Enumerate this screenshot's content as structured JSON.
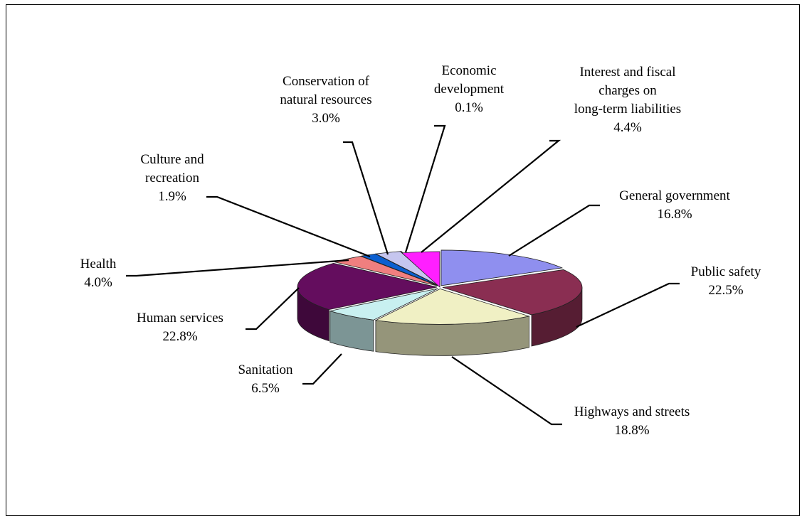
{
  "chart_data": {
    "type": "pie",
    "subtype": "3d-exploded",
    "title": "",
    "unit": "%",
    "slices": [
      {
        "label": "General government",
        "lines": [
          "General government"
        ],
        "value": 16.8,
        "value_label": "16.8%",
        "color": "#8f8fef"
      },
      {
        "label": "Public safety",
        "lines": [
          "Public safety"
        ],
        "value": 22.5,
        "value_label": "22.5%",
        "color": "#8a2e52"
      },
      {
        "label": "Highways and streets",
        "lines": [
          "Highways and streets"
        ],
        "value": 18.8,
        "value_label": "18.8%",
        "color": "#f0f0c4"
      },
      {
        "label": "Sanitation",
        "lines": [
          "Sanitation"
        ],
        "value": 6.5,
        "value_label": "6.5%",
        "color": "#c8f0f0"
      },
      {
        "label": "Human services",
        "lines": [
          "Human services"
        ],
        "value": 22.8,
        "value_label": "22.8%",
        "color": "#640d5e"
      },
      {
        "label": "Health",
        "lines": [
          "Health"
        ],
        "value": 4.0,
        "value_label": "4.0%",
        "color": "#f07f7f"
      },
      {
        "label": "Culture and recreation",
        "lines": [
          "Culture and",
          "recreation"
        ],
        "value": 1.9,
        "value_label": "1.9%",
        "color": "#0b5fd0"
      },
      {
        "label": "Conservation of natural resources",
        "lines": [
          "Conservation of",
          "natural resources"
        ],
        "value": 3.0,
        "value_label": "3.0%",
        "color": "#c6c6ef"
      },
      {
        "label": "Economic development",
        "lines": [
          "Economic",
          "development"
        ],
        "value": 0.1,
        "value_label": "0.1%",
        "color": "#8a2e52"
      },
      {
        "label": "Interest and fiscal charges on long-term liabilities",
        "lines": [
          "Interest and fiscal",
          "charges on",
          "long-term liabilities"
        ],
        "value": 4.4,
        "value_label": "4.4%",
        "color": "#ff1fff"
      }
    ]
  }
}
